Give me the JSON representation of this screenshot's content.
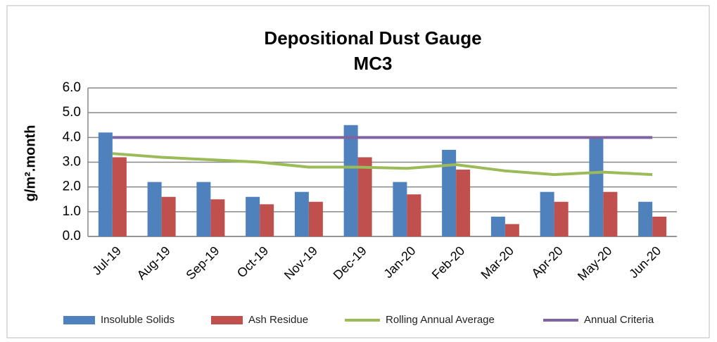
{
  "chart_data": {
    "type": "combo",
    "title": "Depositional Dust Gauge",
    "subtitle": "MC3",
    "y_label": "g/m².month",
    "categories": [
      "Jul-19",
      "Aug-19",
      "Sep-19",
      "Oct-19",
      "Nov-19",
      "Dec-19",
      "Jan-20",
      "Feb-20",
      "Mar-20",
      "Apr-20",
      "May-20",
      "Jun-20"
    ],
    "series": [
      {
        "name": "Insoluble Solids",
        "type": "bar",
        "color": "#4f81bd",
        "values": [
          4.2,
          2.2,
          2.2,
          1.6,
          1.8,
          4.5,
          2.2,
          3.5,
          0.8,
          1.8,
          4.0,
          1.4
        ]
      },
      {
        "name": "Ash Residue",
        "type": "bar",
        "color": "#c0504d",
        "values": [
          3.2,
          1.6,
          1.5,
          1.3,
          1.4,
          3.2,
          1.7,
          2.7,
          0.5,
          1.4,
          1.8,
          0.8
        ]
      },
      {
        "name": "Rolling Annual Average",
        "type": "line",
        "color": "#9bbb59",
        "values": [
          3.35,
          3.2,
          3.1,
          3.0,
          2.8,
          2.8,
          2.75,
          2.9,
          2.65,
          2.5,
          2.6,
          2.5
        ]
      },
      {
        "name": "Annual Criteria",
        "type": "line",
        "color": "#8064a2",
        "values": [
          4,
          4,
          4,
          4,
          4,
          4,
          4,
          4,
          4,
          4,
          4,
          4
        ]
      }
    ],
    "ylim": [
      0,
      6
    ],
    "yticks": [
      {
        "value": 0,
        "label": "0.0"
      },
      {
        "value": 1,
        "label": "1.0"
      },
      {
        "value": 2,
        "label": "2.0"
      },
      {
        "value": 3,
        "label": "3.0"
      },
      {
        "value": 4,
        "label": "4.0"
      },
      {
        "value": 5,
        "label": "5.0"
      },
      {
        "value": 6,
        "label": "6.0"
      }
    ],
    "grid": true,
    "legend": "bottom"
  }
}
